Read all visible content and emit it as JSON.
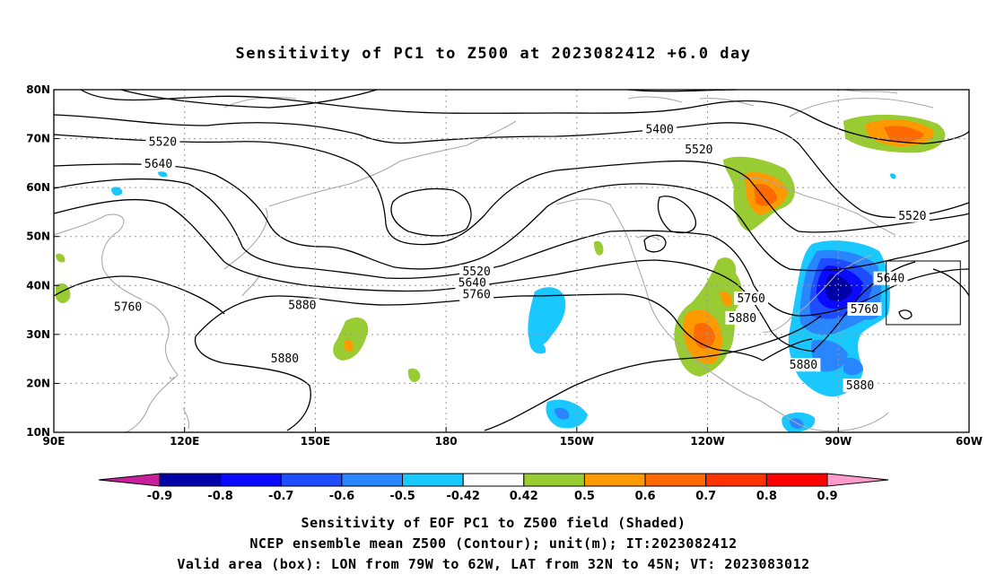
{
  "title": "Sensitivity of PC1 to Z500 at 2023082412 +6.0 day",
  "captions": [
    "Sensitivity of EOF PC1 to Z500 field (Shaded)",
    "NCEP ensemble mean Z500 (Contour); unit(m); IT:2023082412",
    "Valid area (box): LON from 79W to 62W, LAT from 32N to 45N; VT: 2023083012"
  ],
  "map": {
    "lon_range": [
      90,
      300
    ],
    "lat_range": [
      10,
      80
    ],
    "lon_ticks": [
      {
        "lon": 90,
        "label": "90E"
      },
      {
        "lon": 120,
        "label": "120E"
      },
      {
        "lon": 150,
        "label": "150E"
      },
      {
        "lon": 180,
        "label": "180"
      },
      {
        "lon": 210,
        "label": "150W"
      },
      {
        "lon": 240,
        "label": "120W"
      },
      {
        "lon": 270,
        "label": "90W"
      },
      {
        "lon": 300,
        "label": "60W"
      }
    ],
    "lat_ticks": [
      {
        "lat": 10,
        "label": "10N"
      },
      {
        "lat": 20,
        "label": "20N"
      },
      {
        "lat": 30,
        "label": "30N"
      },
      {
        "lat": 40,
        "label": "40N"
      },
      {
        "lat": 50,
        "label": "50N"
      },
      {
        "lat": 60,
        "label": "60N"
      },
      {
        "lat": 70,
        "label": "70N"
      },
      {
        "lat": 80,
        "label": "80N"
      }
    ],
    "valid_box": {
      "lon_min": 281,
      "lon_max": 298,
      "lat_min": 32,
      "lat_max": 45
    },
    "contour_labels": [
      {
        "text": "5400",
        "lon": 229,
        "lat": 71.8
      },
      {
        "text": "5520",
        "lon": 115,
        "lat": 69.3
      },
      {
        "text": "5520",
        "lon": 238,
        "lat": 67.7
      },
      {
        "text": "5520",
        "lon": 287,
        "lat": 54.2
      },
      {
        "text": "5520",
        "lon": 187,
        "lat": 42.8
      },
      {
        "text": "5640",
        "lon": 114,
        "lat": 64.8
      },
      {
        "text": "5640",
        "lon": 186,
        "lat": 40.5
      },
      {
        "text": "5640",
        "lon": 282,
        "lat": 41.4
      },
      {
        "text": "5760",
        "lon": 107,
        "lat": 35.6
      },
      {
        "text": "5760",
        "lon": 187,
        "lat": 38.1
      },
      {
        "text": "5760",
        "lon": 250,
        "lat": 37.3
      },
      {
        "text": "5760",
        "lon": 276,
        "lat": 35.1
      },
      {
        "text": "5880",
        "lon": 147,
        "lat": 35.9
      },
      {
        "text": "5880",
        "lon": 248,
        "lat": 33.3
      },
      {
        "text": "5880",
        "lon": 143,
        "lat": 25.0
      },
      {
        "text": "5880",
        "lon": 262,
        "lat": 23.7
      },
      {
        "text": "5880",
        "lon": 275,
        "lat": 19.5
      }
    ]
  },
  "colorbar": {
    "labels": [
      "-0.9",
      "-0.8",
      "-0.7",
      "-0.6",
      "-0.5",
      "-0.42",
      "0.42",
      "0.5",
      "0.6",
      "0.7",
      "0.8",
      "0.9"
    ],
    "colors": [
      "#c7209c",
      "#0000a8",
      "#0a0aff",
      "#1e4cff",
      "#2a86ff",
      "#19c8ff",
      "#ffffff",
      "#99cc33",
      "#ff9900",
      "#ff6a00",
      "#ff3300",
      "#ff0000",
      "#ff9ccc"
    ]
  }
}
